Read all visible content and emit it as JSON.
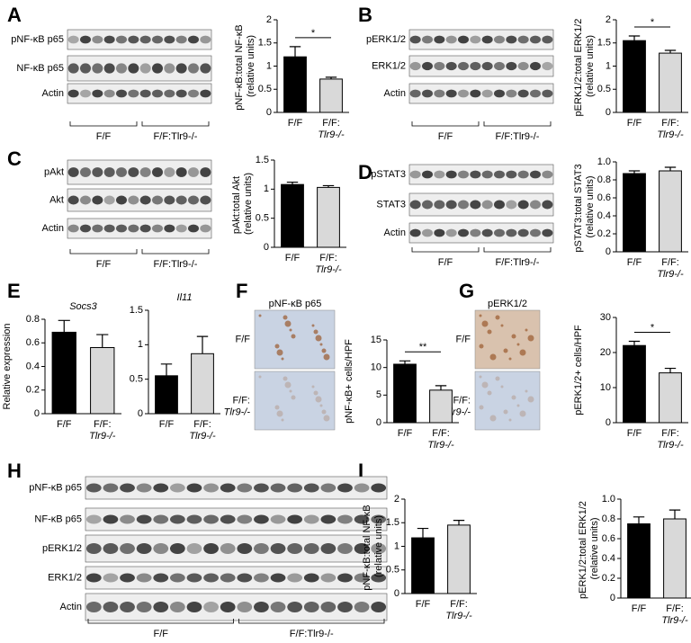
{
  "panel_labels": [
    "A",
    "B",
    "C",
    "D",
    "E",
    "F",
    "G",
    "H",
    "I"
  ],
  "blots": [
    {
      "rows": [
        "pNF-κB p65",
        "NF-κB p65",
        "Actin"
      ],
      "groups": [
        "F/F",
        "F/F:Tlr9-/-"
      ]
    },
    {
      "rows": [
        "pERK1/2",
        "ERK1/2",
        "Actin"
      ],
      "groups": [
        "F/F",
        "F/F:Tlr9-/-"
      ]
    },
    {
      "rows": [
        "pAkt",
        "Akt",
        "Actin"
      ],
      "groups": [
        "F/F",
        "F/F:Tlr9-/-"
      ]
    },
    {
      "rows": [
        "pSTAT3",
        "STAT3",
        "Actin"
      ],
      "groups": [
        "F/F",
        "F/F:Tlr9-/-"
      ]
    },
    {
      "rows": [
        "pNF-κB p65",
        "NF-κB p65",
        "pERK1/2",
        "ERK1/2",
        "Actin"
      ],
      "groups": [
        "F/F",
        "F/F:Tlr9-/-"
      ]
    }
  ],
  "micrographs": [
    {
      "title": "pNF-κB p65",
      "rows": [
        "F/F",
        "F/F:Tlr9-/-"
      ]
    },
    {
      "title": "pERK1/2",
      "rows": [
        "F/F",
        "F/F:Tlr9-/-"
      ]
    }
  ],
  "chart_data": [
    {
      "type": "bar",
      "ylabel": "pNF-κB:total NF-κB (relative units)",
      "categories": [
        "F/F",
        "F/F:Tlr9-/-"
      ],
      "values": [
        1.2,
        0.72
      ],
      "errors": [
        0.22,
        0.04
      ],
      "colors": [
        "#000000",
        "#d9d9d9"
      ],
      "ylim": [
        0,
        2
      ],
      "yticks": [
        0,
        0.5,
        1,
        1.5,
        2
      ],
      "annotation": "*"
    },
    {
      "type": "bar",
      "ylabel": "pERK1/2:total ERK1/2 (relative units)",
      "categories": [
        "F/F",
        "F/F:Tlr9-/-"
      ],
      "values": [
        1.55,
        1.28
      ],
      "errors": [
        0.1,
        0.06
      ],
      "colors": [
        "#000000",
        "#d9d9d9"
      ],
      "ylim": [
        0,
        2
      ],
      "yticks": [
        0,
        0.5,
        1,
        1.5,
        2
      ],
      "annotation": "*"
    },
    {
      "type": "bar",
      "ylabel": "pAkt:total Akt (relative units)",
      "categories": [
        "F/F",
        "F/F:Tlr9-/-"
      ],
      "values": [
        1.08,
        1.03
      ],
      "errors": [
        0.04,
        0.03
      ],
      "colors": [
        "#000000",
        "#d9d9d9"
      ],
      "ylim": [
        0,
        1.5
      ],
      "yticks": [
        0,
        0.5,
        1,
        1.5
      ]
    },
    {
      "type": "bar",
      "ylabel": "pSTAT3:total STAT3 (relative units)",
      "categories": [
        "F/F",
        "F/F:Tlr9-/-"
      ],
      "values": [
        0.87,
        0.9
      ],
      "errors": [
        0.03,
        0.04
      ],
      "colors": [
        "#000000",
        "#d9d9d9"
      ],
      "ylim": [
        0,
        1
      ],
      "yticks": [
        0,
        0.2,
        0.4,
        0.6,
        0.8,
        {
          "value": 1,
          "label": "1.0"
        }
      ]
    },
    {
      "type": "bar",
      "title": "Socs3",
      "ylabel": "Relative expression",
      "categories": [
        "F/F",
        "F/F:Tlr9-/-"
      ],
      "values": [
        0.69,
        0.56
      ],
      "errors": [
        0.1,
        0.11
      ],
      "colors": [
        "#000000",
        "#d9d9d9"
      ],
      "ylim": [
        0,
        0.8
      ],
      "yticks": [
        0,
        0.2,
        0.4,
        0.6,
        0.8
      ]
    },
    {
      "type": "bar",
      "title": "Il11",
      "categories": [
        "F/F",
        "F/F:Tlr9-/-"
      ],
      "values": [
        0.55,
        0.87
      ],
      "errors": [
        0.17,
        0.25
      ],
      "colors": [
        "#000000",
        "#d9d9d9"
      ],
      "ylim": [
        0,
        1.5
      ],
      "yticks": [
        0,
        0.5,
        1,
        1.5
      ]
    },
    {
      "type": "bar",
      "ylabel": "pNF-κB+ cells/HPF",
      "categories": [
        "F/F",
        "F/F:Tlr9-/-"
      ],
      "values": [
        10.6,
        5.9
      ],
      "errors": [
        0.6,
        0.8
      ],
      "colors": [
        "#000000",
        "#d9d9d9"
      ],
      "ylim": [
        0,
        15
      ],
      "yticks": [
        0,
        5,
        10,
        15
      ],
      "annotation": "**"
    },
    {
      "type": "bar",
      "ylabel": "pERK1/2+ cells/HPF",
      "categories": [
        "F/F",
        "F/F:Tlr9-/-"
      ],
      "values": [
        22,
        14.2
      ],
      "errors": [
        1.2,
        1.3
      ],
      "colors": [
        "#000000",
        "#d9d9d9"
      ],
      "ylim": [
        0,
        30
      ],
      "yticks": [
        0,
        10,
        20,
        30
      ],
      "annotation": "*"
    },
    {
      "type": "bar",
      "ylabel": "pNF-κB:total NF-κB (relative units)",
      "categories": [
        "F/F",
        "F/F:Tlr9-/-"
      ],
      "values": [
        1.18,
        1.45
      ],
      "errors": [
        0.2,
        0.1
      ],
      "colors": [
        "#000000",
        "#d9d9d9"
      ],
      "ylim": [
        0,
        2
      ],
      "yticks": [
        0,
        0.5,
        1,
        1.5,
        2
      ]
    },
    {
      "type": "bar",
      "ylabel": "pERK1/2:total ERK1/2 (relative units)",
      "categories": [
        "F/F",
        "F/F:Tlr9-/-"
      ],
      "values": [
        0.75,
        0.8
      ],
      "errors": [
        0.07,
        0.09
      ],
      "colors": [
        "#000000",
        "#d9d9d9"
      ],
      "ylim": [
        0,
        1
      ],
      "yticks": [
        0,
        0.2,
        0.4,
        0.6,
        0.8,
        {
          "value": 1,
          "label": "1.0"
        }
      ]
    }
  ]
}
